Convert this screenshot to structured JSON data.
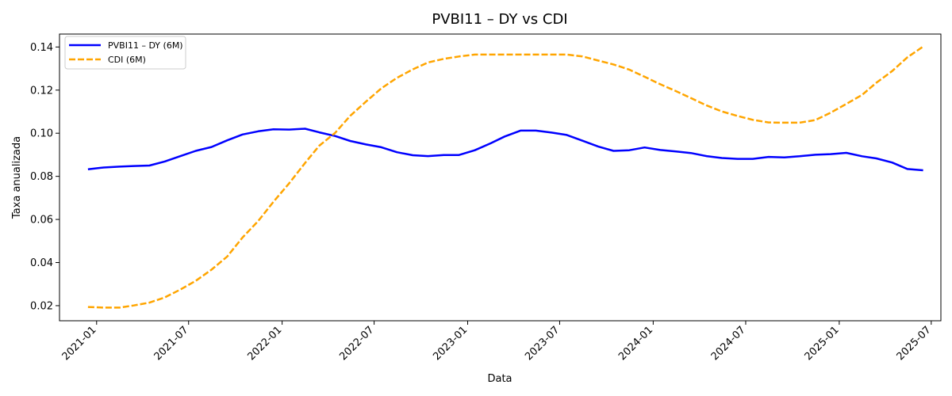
{
  "chart_data": {
    "type": "line",
    "title": "PVBI11 – DY vs CDI",
    "xlabel": "Data",
    "ylabel": "Taxa anualizada",
    "xlim": [
      "2020-10-20",
      "2025-07-20"
    ],
    "ylim": [
      0.013,
      0.146
    ],
    "x_ticks": [
      "2021-01",
      "2021-07",
      "2022-01",
      "2022-07",
      "2023-01",
      "2023-07",
      "2024-01",
      "2024-07",
      "2025-01",
      "2025-07"
    ],
    "y_ticks": [
      "0.02",
      "0.04",
      "0.06",
      "0.08",
      "0.10",
      "0.12",
      "0.14"
    ],
    "grid": false,
    "legend_position": "top-left",
    "x": [
      "2020-12",
      "2021-01",
      "2021-02",
      "2021-03",
      "2021-04",
      "2021-05",
      "2021-06",
      "2021-07",
      "2021-08",
      "2021-09",
      "2021-10",
      "2021-11",
      "2021-12",
      "2022-01",
      "2022-02",
      "2022-03",
      "2022-04",
      "2022-05",
      "2022-06",
      "2022-07",
      "2022-08",
      "2022-09",
      "2022-10",
      "2022-11",
      "2022-12",
      "2023-01",
      "2023-02",
      "2023-03",
      "2023-04",
      "2023-05",
      "2023-06",
      "2023-07",
      "2023-08",
      "2023-09",
      "2023-10",
      "2023-11",
      "2023-12",
      "2024-01",
      "2024-02",
      "2024-03",
      "2024-04",
      "2024-05",
      "2024-06",
      "2024-07",
      "2024-08",
      "2024-09",
      "2024-10",
      "2024-11",
      "2024-12",
      "2025-01",
      "2025-02",
      "2025-03",
      "2025-04",
      "2025-05",
      "2025-06"
    ],
    "series": [
      {
        "name": "PVBI11 – DY (6M)",
        "color": "#0000ff",
        "style": "solid",
        "values": [
          0.0833,
          0.0841,
          0.0845,
          0.0848,
          0.085,
          0.0869,
          0.0894,
          0.0918,
          0.0936,
          0.0967,
          0.0994,
          0.1009,
          0.1018,
          0.1017,
          0.1021,
          0.1004,
          0.0987,
          0.0964,
          0.0948,
          0.0935,
          0.0912,
          0.0898,
          0.0894,
          0.0899,
          0.0899,
          0.0921,
          0.0953,
          0.0985,
          0.1012,
          0.1012,
          0.1003,
          0.0992,
          0.0965,
          0.0938,
          0.0918,
          0.0921,
          0.0934,
          0.0922,
          0.0915,
          0.0908,
          0.0894,
          0.0885,
          0.0881,
          0.0881,
          0.089,
          0.0888,
          0.0893,
          0.09,
          0.0903,
          0.0909,
          0.0893,
          0.0883,
          0.0864,
          0.0834,
          0.0828
        ]
      },
      {
        "name": "CDI (6M)",
        "color": "#ffa500",
        "style": "dashed",
        "values": [
          0.0194,
          0.0191,
          0.0191,
          0.0201,
          0.0214,
          0.0238,
          0.0275,
          0.0315,
          0.0367,
          0.0428,
          0.0516,
          0.0593,
          0.0682,
          0.0768,
          0.0862,
          0.0942,
          0.1001,
          0.1081,
          0.1147,
          0.1208,
          0.1257,
          0.1296,
          0.1328,
          0.1345,
          0.1356,
          0.1365,
          0.1365,
          0.1365,
          0.1365,
          0.1365,
          0.1365,
          0.1365,
          0.1356,
          0.1337,
          0.1319,
          0.1295,
          0.1262,
          0.1227,
          0.1195,
          0.1163,
          0.1129,
          0.1101,
          0.108,
          0.1062,
          0.105,
          0.1049,
          0.1049,
          0.1061,
          0.1095,
          0.1136,
          0.1178,
          0.1234,
          0.1288,
          0.1352,
          0.1402
        ]
      }
    ]
  }
}
